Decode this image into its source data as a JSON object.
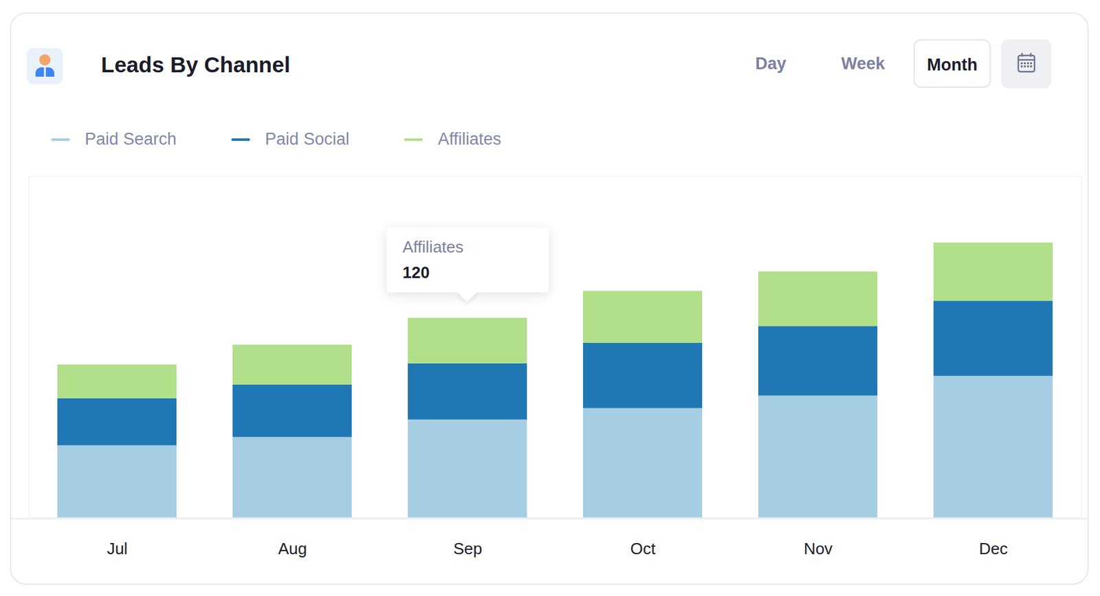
{
  "chart_data": {
    "type": "bar",
    "title": "Leads By Channel",
    "stacked": true,
    "categories": [
      "Jul",
      "Aug",
      "Sep",
      "Oct",
      "Nov",
      "Dec"
    ],
    "series": [
      {
        "name": "Paid Search",
        "color": "#a6cee3",
        "values": [
          190,
          212,
          258,
          288,
          321,
          373
        ]
      },
      {
        "name": "Paid Social",
        "color": "#1f78b4",
        "values": [
          124,
          138,
          148,
          172,
          183,
          198
        ]
      },
      {
        "name": "Affiliates",
        "color": "#b2df8a",
        "values": [
          89,
          105,
          120,
          137,
          144,
          153
        ]
      }
    ],
    "ylim": [
      0,
      900
    ],
    "tick_labels": "x",
    "legend": "top-left",
    "annotations": [
      {
        "category": "Sep",
        "series": "Affiliates",
        "label": "Affiliates",
        "value": 120
      }
    ]
  },
  "header": {
    "buttons": [
      "Day",
      "Week",
      "Month"
    ],
    "selected": "Month"
  }
}
